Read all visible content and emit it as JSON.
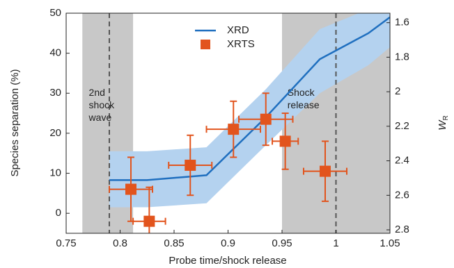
{
  "chart_data": {
    "type": "line",
    "xlabel": "Probe time/shock release",
    "ylabel": "Species separation (%)",
    "y2label": "W",
    "y2label_sub": "R",
    "xlim": [
      0.75,
      1.05
    ],
    "xticks": [
      0.75,
      0.8,
      0.85,
      0.9,
      0.95,
      1,
      1.05
    ],
    "ylim": [
      -5,
      50
    ],
    "yticks": [
      0,
      10,
      20,
      30,
      40,
      50
    ],
    "y2lim": [
      1.545,
      2.82
    ],
    "y2ticks": [
      1.6,
      1.8,
      2,
      2.2,
      2.4,
      2.6,
      2.8
    ],
    "y2_inverted": true,
    "shaded_regions": [
      [
        0.765,
        0.812
      ],
      [
        0.95,
        1.05
      ]
    ],
    "shade_color": "#c8c8c8",
    "dashed_lines": [
      0.79,
      1
    ],
    "annotations": [
      {
        "lines": [
          "2nd",
          "shock",
          "wave"
        ],
        "x": 0.771,
        "y": 30
      },
      {
        "lines": [
          "Shock",
          "release"
        ],
        "x": 0.955,
        "y": 30
      }
    ],
    "legend_position": "top center",
    "series": [
      {
        "name": "XRD",
        "color": "#1f6fbf",
        "band_color": "#b4d2ef",
        "x": [
          0.79,
          0.825,
          0.88,
          0.935,
          0.985,
          1.03,
          1.05
        ],
        "values": [
          8.3,
          8.3,
          9.5,
          24,
          38.5,
          45,
          49
        ],
        "lower": [
          1.5,
          1.5,
          2.5,
          17,
          30,
          37,
          41.5
        ],
        "upper": [
          15.5,
          15.5,
          16.5,
          31,
          46,
          51,
          56
        ]
      },
      {
        "name": "XRTS",
        "color": "#e2541d",
        "marker": "square",
        "x": [
          0.81,
          0.827,
          0.865,
          0.905,
          0.935,
          0.953,
          0.99
        ],
        "values": [
          6,
          -2,
          12,
          21,
          23.5,
          18,
          10.5
        ],
        "xerr": [
          0.02,
          0.015,
          0.02,
          0.025,
          0.025,
          0.012,
          0.02
        ],
        "yerr": [
          8,
          8.5,
          7.5,
          7,
          6.5,
          7,
          7.5
        ]
      }
    ]
  }
}
